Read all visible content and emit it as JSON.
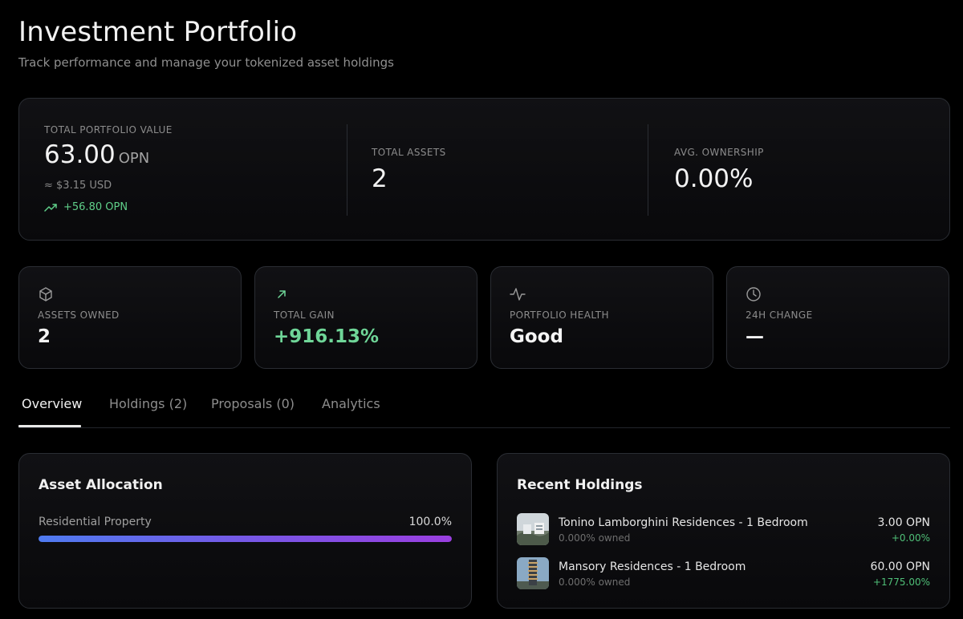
{
  "header": {
    "title": "Investment Portfolio",
    "subtitle": "Track performance and manage your tokenized asset holdings"
  },
  "summary": {
    "total_value_label": "TOTAL PORTFOLIO VALUE",
    "total_value": "63.00",
    "total_value_unit": "OPN",
    "usd_value": "≈ $3.15 USD",
    "gain": "+56.80 OPN",
    "total_assets_label": "TOTAL ASSETS",
    "total_assets": "2",
    "avg_ownership_label": "AVG. OWNERSHIP",
    "avg_ownership": "0.00%"
  },
  "stats": [
    {
      "icon": "box-icon",
      "label": "ASSETS OWNED",
      "value": "2"
    },
    {
      "icon": "arrow-up-right-icon",
      "label": "TOTAL GAIN",
      "value": "+916.13%"
    },
    {
      "icon": "activity-icon",
      "label": "PORTFOLIO HEALTH",
      "value": "Good"
    },
    {
      "icon": "clock-icon",
      "label": "24H CHANGE",
      "value": "—"
    }
  ],
  "tabs": [
    {
      "label": "Overview",
      "active": true
    },
    {
      "label": "Holdings (2)",
      "active": false
    },
    {
      "label": "Proposals (0)",
      "active": false
    },
    {
      "label": "Analytics",
      "active": false
    }
  ],
  "allocation": {
    "title": "Asset Allocation",
    "items": [
      {
        "label": "Residential Property",
        "percent": "100.0%",
        "fraction": 1.0
      }
    ]
  },
  "recent_holdings": {
    "title": "Recent Holdings",
    "items": [
      {
        "name": "Tonino Lamborghini Residences - 1 Bedroom",
        "ownership": "0.000% owned",
        "value": "3.00 OPN",
        "change": "+0.00%"
      },
      {
        "name": "Mansory Residences - 1 Bedroom",
        "ownership": "0.000% owned",
        "value": "60.00 OPN",
        "change": "+1775.00%"
      }
    ]
  },
  "colors": {
    "background": "#000000",
    "positive": "#5fcf89",
    "bar_start": "#4f7bf0",
    "bar_end": "#9a3fe0"
  }
}
